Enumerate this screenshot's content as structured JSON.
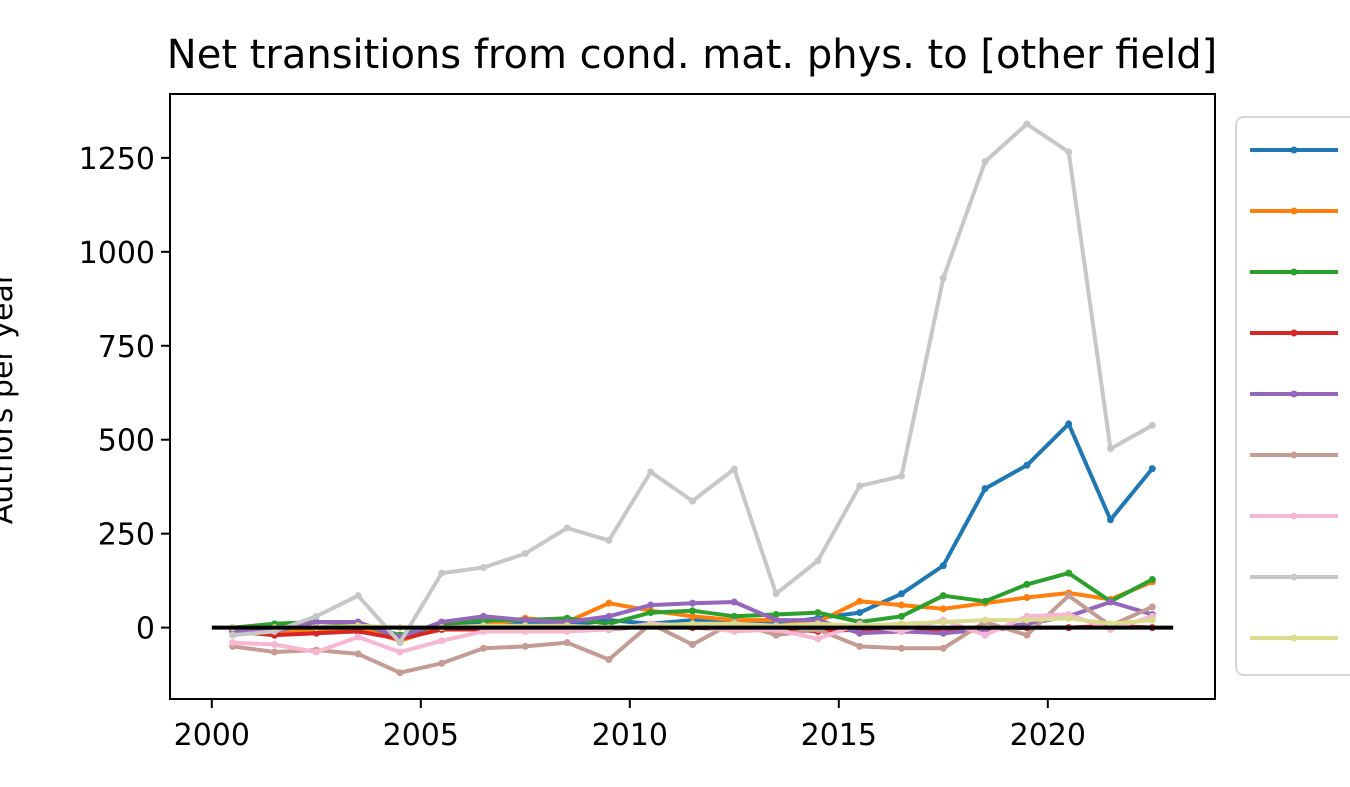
{
  "chart_data": {
    "type": "line",
    "title": "Net transitions from cond. mat. phys. to [other field]",
    "xlabel": "",
    "ylabel": "Authors per year",
    "xlim": [
      1999,
      2024
    ],
    "ylim": [
      -190,
      1420
    ],
    "xticks": [
      2000,
      2005,
      2010,
      2015,
      2020
    ],
    "yticks": [
      0,
      250,
      500,
      750,
      1000,
      1250
    ],
    "x": [
      2000.5,
      2001.5,
      2002.5,
      2003.5,
      2004.5,
      2005.5,
      2006.5,
      2007.5,
      2008.5,
      2009.5,
      2010.5,
      2011.5,
      2012.5,
      2013.5,
      2014.5,
      2015.5,
      2016.5,
      2017.5,
      2018.5,
      2019.5,
      2020.5,
      2021.5,
      2022.5
    ],
    "reference_line": {
      "y": 0,
      "x_range": [
        2000,
        2023
      ],
      "color": "#000000"
    },
    "legend_position": "outside right",
    "series": [
      {
        "color": "#1f77b4",
        "values": [
          -10,
          -20,
          -5,
          10,
          -30,
          5,
          10,
          15,
          5,
          20,
          10,
          20,
          20,
          10,
          25,
          40,
          90,
          165,
          370,
          432,
          542,
          287,
          423
        ]
      },
      {
        "color": "#ff7f0e",
        "values": [
          -5,
          -15,
          -5,
          0,
          -35,
          0,
          5,
          25,
          15,
          65,
          45,
          30,
          20,
          20,
          15,
          70,
          60,
          50,
          65,
          80,
          92,
          75,
          122
        ]
      },
      {
        "color": "#2ca02c",
        "values": [
          0,
          10,
          15,
          10,
          -20,
          10,
          20,
          20,
          25,
          10,
          40,
          45,
          30,
          35,
          40,
          15,
          30,
          85,
          70,
          115,
          145,
          70,
          128
        ]
      },
      {
        "color": "#d62728",
        "values": [
          -10,
          -20,
          -15,
          -10,
          -30,
          -5,
          -5,
          -5,
          0,
          -5,
          5,
          0,
          -5,
          -5,
          -10,
          -5,
          -10,
          -10,
          -5,
          0,
          0,
          5,
          0
        ]
      },
      {
        "color": "#9467bd",
        "values": [
          -10,
          -10,
          15,
          15,
          -25,
          15,
          30,
          20,
          15,
          30,
          60,
          65,
          68,
          20,
          20,
          -15,
          -10,
          -15,
          -5,
          10,
          30,
          68,
          35
        ]
      },
      {
        "color": "#c49c94",
        "values": [
          -50,
          -65,
          -60,
          -70,
          -120,
          -95,
          -55,
          -50,
          -40,
          -85,
          10,
          -45,
          15,
          -20,
          -5,
          -50,
          -55,
          -55,
          15,
          -20,
          85,
          5,
          55
        ]
      },
      {
        "color": "#f7b6d2",
        "values": [
          -40,
          -45,
          -65,
          -25,
          -65,
          -35,
          -10,
          -10,
          -10,
          -5,
          10,
          5,
          -10,
          -5,
          -30,
          10,
          -10,
          20,
          -20,
          30,
          35,
          -5,
          30
        ]
      },
      {
        "color": "#c7c7c7",
        "values": [
          -20,
          -10,
          30,
          85,
          -40,
          145,
          160,
          197,
          265,
          232,
          414,
          337,
          422,
          90,
          178,
          377,
          403,
          930,
          1240,
          1340,
          1266,
          476,
          538
        ]
      },
      {
        "color": "#dbdb8d",
        "values": [
          0,
          0,
          0,
          5,
          0,
          0,
          5,
          5,
          5,
          0,
          5,
          10,
          10,
          5,
          10,
          5,
          10,
          15,
          20,
          20,
          25,
          10,
          20
        ]
      }
    ]
  }
}
